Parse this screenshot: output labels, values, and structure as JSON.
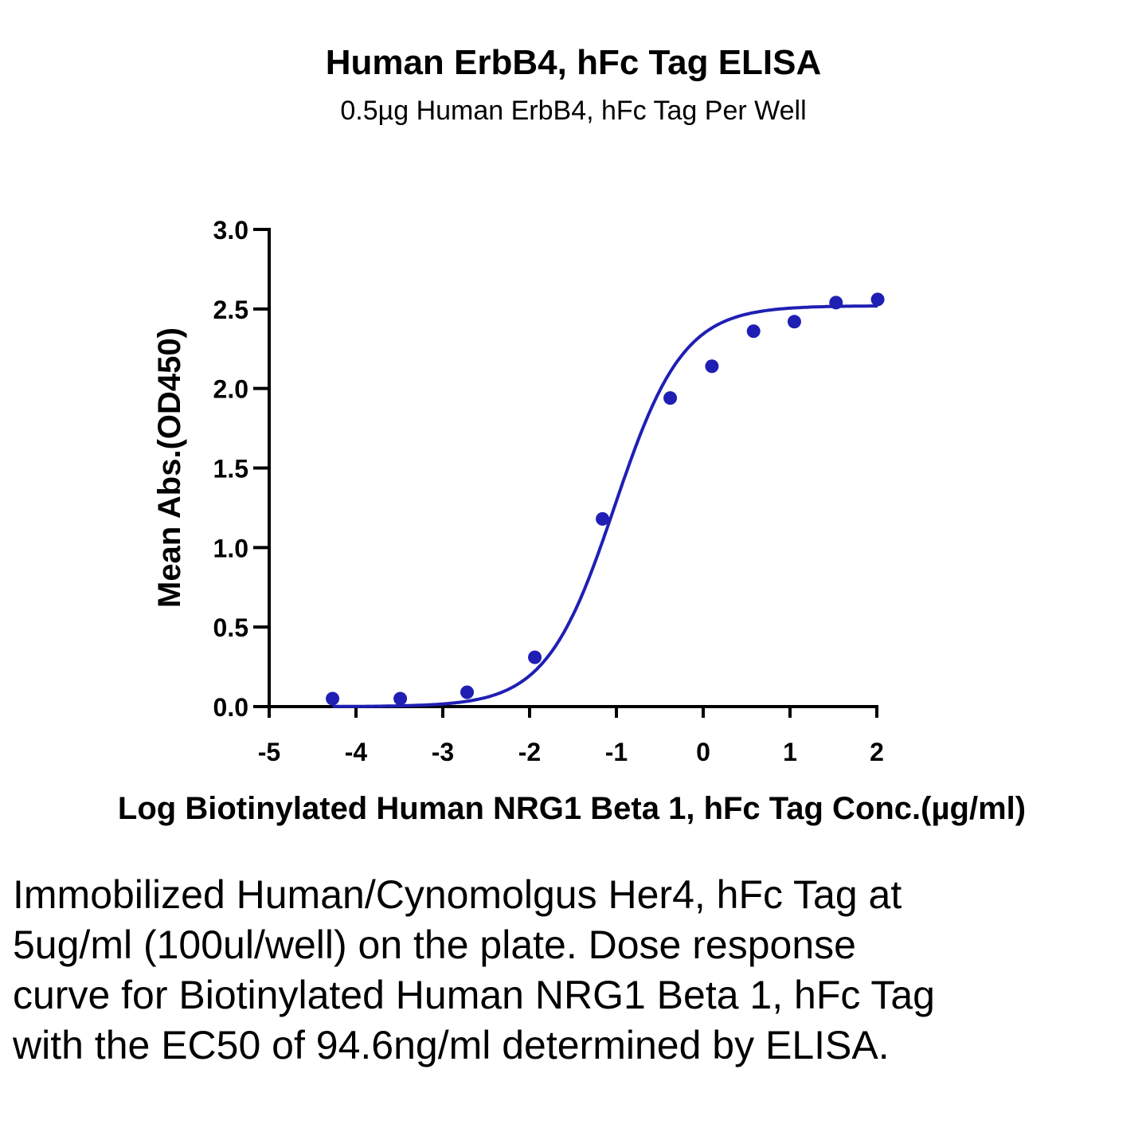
{
  "chart_data": {
    "type": "scatter",
    "title": "Human ErbB4, hFc Tag ELISA",
    "subtitle": "0.5µg Human ErbB4, hFc Tag Per Well",
    "xlabel": "Log Biotinylated Human NRG1 Beta 1, hFc Tag Conc.(µg/ml)",
    "ylabel": "Mean Abs.(OD450)",
    "xlim": [
      -5,
      2
    ],
    "ylim": [
      0,
      3.0
    ],
    "x_ticks": [
      -5,
      -4,
      -3,
      -2,
      -1,
      0,
      1,
      2
    ],
    "x_tick_labels": [
      "-5",
      "-4",
      "-3",
      "-2",
      "-1",
      "0",
      "1",
      "2"
    ],
    "y_ticks": [
      0,
      0.5,
      1.0,
      1.5,
      2.0,
      2.5,
      3.0
    ],
    "y_tick_labels": [
      "0.0",
      "0.5",
      "1.0",
      "1.5",
      "2.0",
      "2.5",
      "3.0"
    ],
    "grid": false,
    "series": [
      {
        "color": "#1f1fb4",
        "points": [
          {
            "x": -4.27,
            "y": 0.05
          },
          {
            "x": -3.49,
            "y": 0.05
          },
          {
            "x": -2.72,
            "y": 0.09
          },
          {
            "x": -1.94,
            "y": 0.31
          },
          {
            "x": -1.16,
            "y": 1.18
          },
          {
            "x": -0.38,
            "y": 1.94
          },
          {
            "x": 0.1,
            "y": 2.14
          },
          {
            "x": 0.58,
            "y": 2.36
          },
          {
            "x": 1.05,
            "y": 2.42
          },
          {
            "x": 1.53,
            "y": 2.54
          },
          {
            "x": 2.01,
            "y": 2.56
          }
        ],
        "fit": {
          "model": "4PL",
          "bottom": 0.0,
          "top": 2.52,
          "logEC50": -1.02,
          "hill": 1.1
        }
      }
    ]
  },
  "caption": "Immobilized Human/Cynomolgus Her4, hFc Tag at 5ug/ml (100ul/well) on the plate. Dose response curve for Biotinylated Human NRG1 Beta 1, hFc Tag with the EC50 of 94.6ng/ml determined by ELISA."
}
